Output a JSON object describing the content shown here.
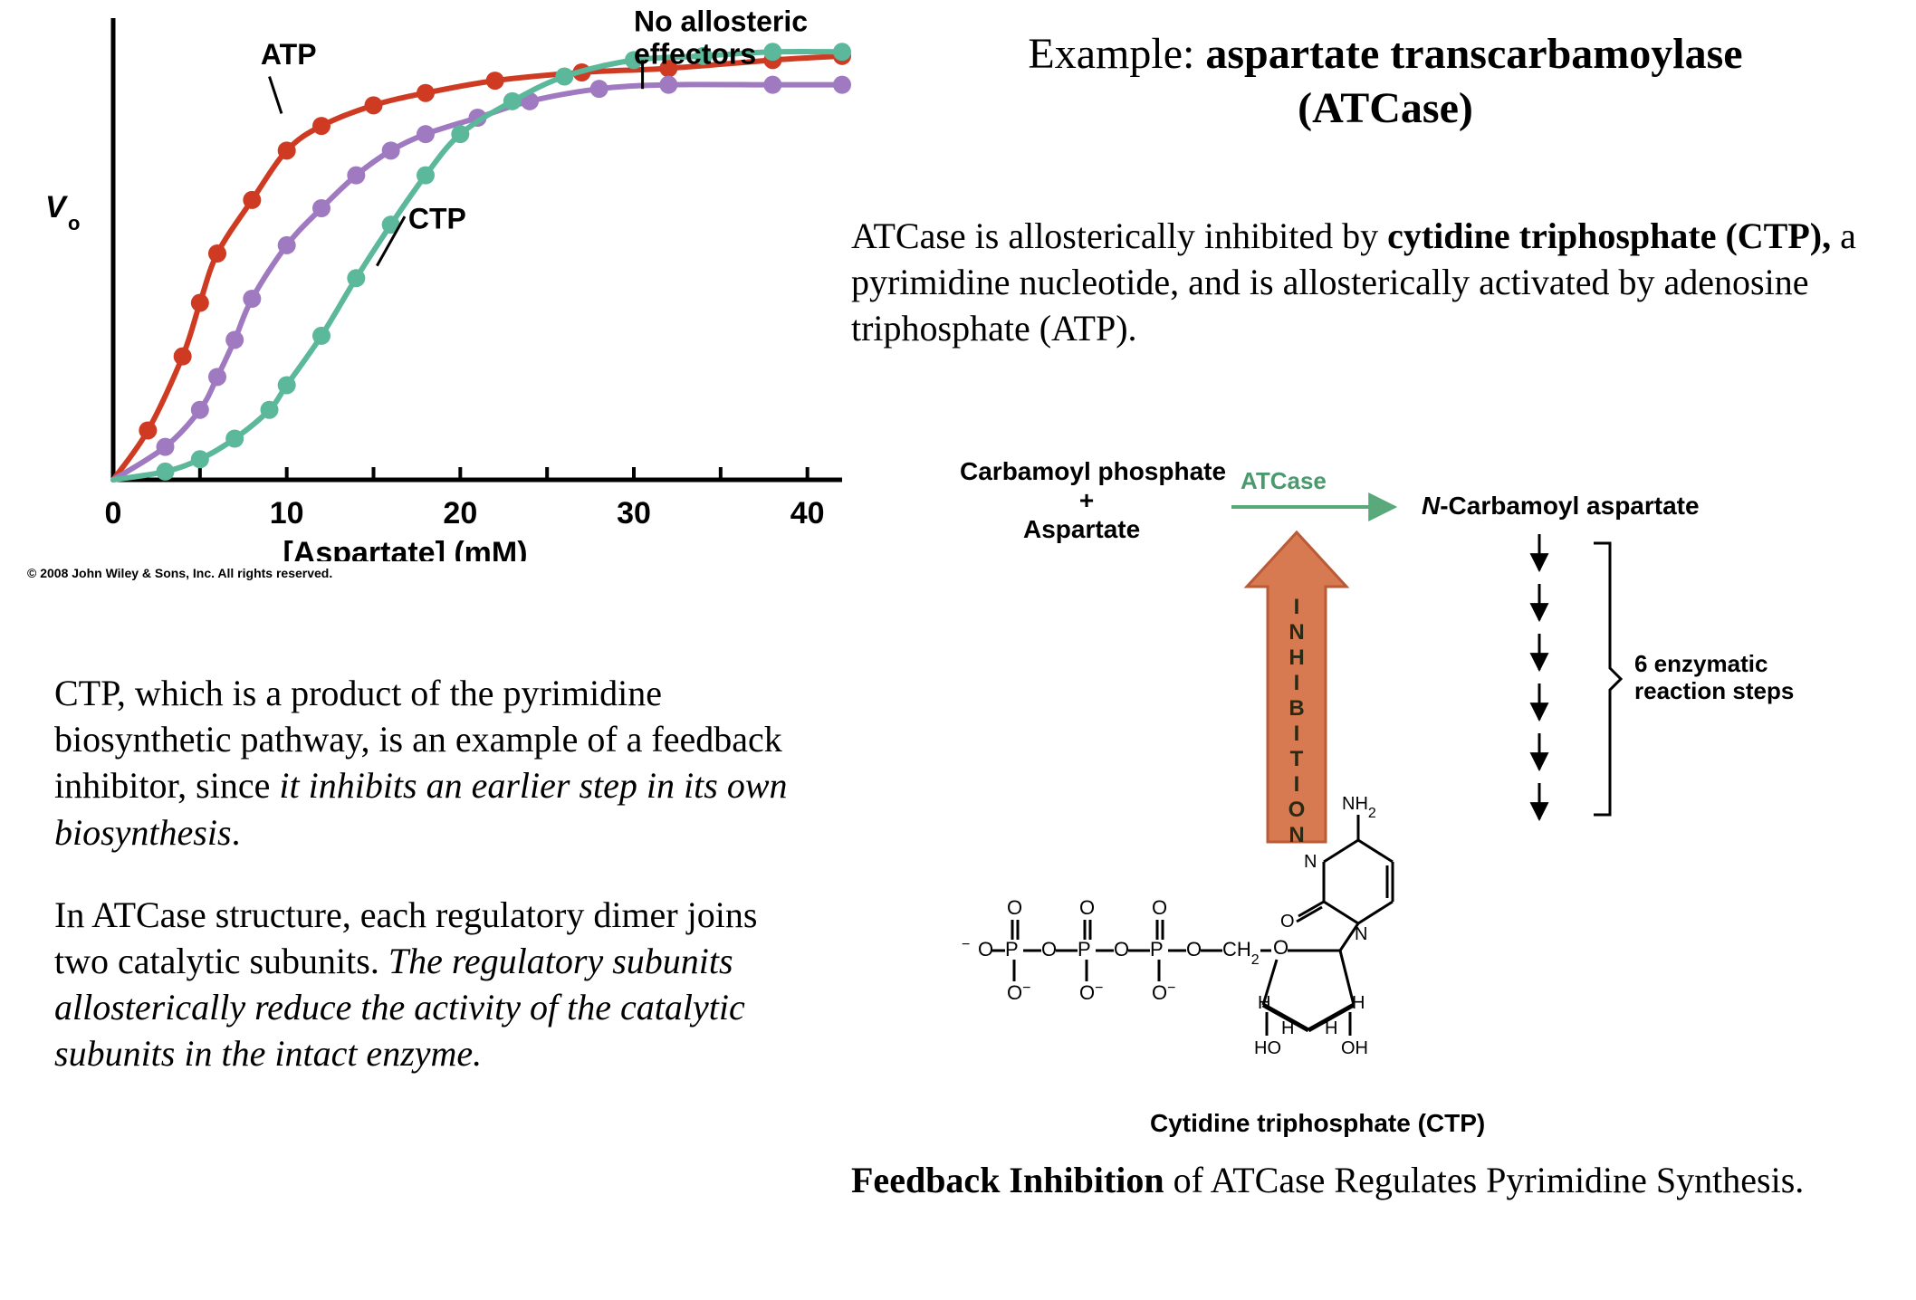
{
  "graph": {
    "type": "line",
    "background_color": "#ffffff",
    "axis_color": "#000000",
    "axis_linewidth": 5,
    "tick_len": 14,
    "xlabel": "[Aspartate] (mM)",
    "ylabel": "V",
    "ylabel_sub": "o",
    "label_fontfamily": "Arial, Helvetica, sans-serif",
    "label_fontsize_pt": 34,
    "xlabel_fontweight": "bold",
    "xlim": [
      0,
      42
    ],
    "ylim": [
      0,
      110
    ],
    "xticks": [
      0,
      10,
      20,
      30,
      40
    ],
    "minor_xticks": [
      5,
      15,
      25,
      35
    ],
    "marker_radius": 10,
    "linewidth": 6,
    "series": [
      {
        "name": "ATP",
        "color": "#cf3b22",
        "points": [
          [
            0,
            0
          ],
          [
            2,
            12
          ],
          [
            4,
            30
          ],
          [
            5,
            43
          ],
          [
            6,
            55
          ],
          [
            8,
            68
          ],
          [
            10,
            80
          ],
          [
            12,
            86
          ],
          [
            15,
            91
          ],
          [
            18,
            94
          ],
          [
            22,
            97
          ],
          [
            27,
            99
          ],
          [
            32,
            100
          ],
          [
            38,
            102
          ],
          [
            42,
            103
          ]
        ]
      },
      {
        "name": "No allosteric effectors",
        "color": "#a07ac0",
        "points": [
          [
            0,
            0
          ],
          [
            3,
            8
          ],
          [
            5,
            17
          ],
          [
            6,
            25
          ],
          [
            7,
            34
          ],
          [
            8,
            44
          ],
          [
            10,
            57
          ],
          [
            12,
            66
          ],
          [
            14,
            74
          ],
          [
            16,
            80
          ],
          [
            18,
            84
          ],
          [
            21,
            88
          ],
          [
            24,
            92
          ],
          [
            28,
            95
          ],
          [
            32,
            96
          ],
          [
            38,
            96
          ],
          [
            42,
            96
          ]
        ]
      },
      {
        "name": "CTP",
        "color": "#5bb89a",
        "points": [
          [
            0,
            0
          ],
          [
            3,
            2
          ],
          [
            5,
            5
          ],
          [
            7,
            10
          ],
          [
            9,
            17
          ],
          [
            10,
            23
          ],
          [
            12,
            35
          ],
          [
            14,
            49
          ],
          [
            16,
            62
          ],
          [
            18,
            74
          ],
          [
            20,
            84
          ],
          [
            23,
            92
          ],
          [
            26,
            98
          ],
          [
            30,
            102
          ],
          [
            34,
            103
          ],
          [
            38,
            104
          ],
          [
            42,
            104
          ]
        ]
      }
    ],
    "curve_labels": [
      {
        "text": "ATP",
        "x": 8.5,
        "y": 101,
        "fontsize": 32,
        "fontweight": "bold",
        "pointer": [
          [
            9.0,
            98
          ],
          [
            9.7,
            89
          ]
        ]
      },
      {
        "text": "CTP",
        "x": 17,
        "y": 61,
        "fontsize": 32,
        "fontweight": "bold",
        "pointer": [
          [
            16.8,
            64
          ],
          [
            15.2,
            52
          ]
        ]
      },
      {
        "text1": "No allosteric",
        "text2": "effectors",
        "x": 30,
        "y": 109,
        "fontsize": 32,
        "fontweight": "bold",
        "pointer": [
          [
            30.5,
            102
          ],
          [
            30.5,
            95
          ]
        ]
      }
    ],
    "copyright": "© 2008 John Wiley & Sons, Inc. All rights reserved."
  },
  "heading": {
    "prefix": "Example: ",
    "bold1": "aspartate transcarbamoylase",
    "bold2": "(ATCase)"
  },
  "para_right": {
    "t1": "ATCase is allosterically inhibited by ",
    "b1": "cytidine triphosphate (CTP),",
    "t2": " a pyrimidine nucleotide, and is allosterically activated by adenosine triphosphate (ATP)."
  },
  "para_left": {
    "p1_t1": "CTP, which is a product of the pyrimidine biosynthetic pathway, is an example of a feedback inhibitor, since ",
    "p1_i1": "it inhibits an earlier step in its own biosynthesis",
    "p1_t2": ".",
    "p2_t1": "In ATCase structure, each regulatory dimer joins two catalytic subunits. ",
    "p2_i1": "The regulatory subunits allosterically reduce the activity of the catalytic subunits in the intact enzyme."
  },
  "diagram": {
    "font": "Arial, Helvetica, sans-serif",
    "labels": {
      "reactant1": "Carbamoyl phosphate",
      "plus": "+",
      "reactant2": "Aspartate",
      "enzyme": "ATCase",
      "product": "N-Carbamoyl aspartate",
      "product_italic_prefix": "N",
      "steps": "6 enzymatic",
      "steps2": "reaction steps",
      "final": "Cytidine triphosphate (CTP)",
      "inhibition": "INHIBITION"
    },
    "colors": {
      "enzyme": "#4a9a6e",
      "arrow_reaction": "#5aa97b",
      "arrow_inhibition_fill": "#d77a52",
      "arrow_inhibition_stroke": "#b85b36",
      "text": "#000000",
      "bracket": "#000000"
    },
    "structure_label": "CTP skeletal structure"
  },
  "caption": {
    "b1": "Feedback Inhibition",
    "t1": " of ATCase Regulates Pyrimidine Synthesis."
  }
}
